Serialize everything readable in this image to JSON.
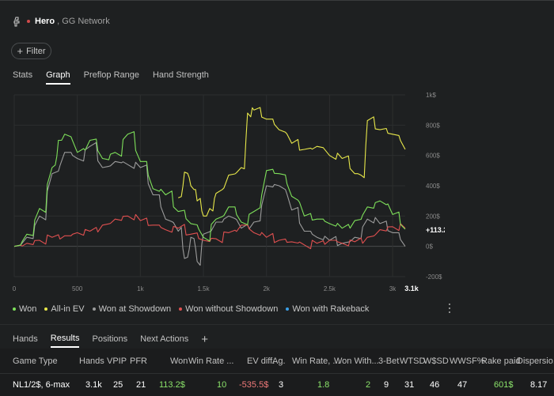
{
  "header": {
    "player": "Hero",
    "network": "GG Network"
  },
  "filter": {
    "label": "Filter"
  },
  "tabs": [
    "Stats",
    "Graph",
    "Preflop Range",
    "Hand Strength"
  ],
  "active_tab": "Graph",
  "colors": {
    "won": "#7ee05a",
    "all_in_ev": "#e8e84a",
    "showdown": "#9c9c9c",
    "non_showdown": "#e05050",
    "rakeback": "#3aa0e8"
  },
  "chart_data": {
    "type": "line",
    "title": "",
    "xlabel": "",
    "ylabel": "",
    "xlim": [
      0,
      3100
    ],
    "ylim": [
      -200,
      1000
    ],
    "x_ticks": [
      "0",
      "500",
      "1k",
      "1.5k",
      "2k",
      "2.5k",
      "3k"
    ],
    "x_tick_values": [
      0,
      500,
      1000,
      1500,
      2000,
      2500,
      3000
    ],
    "y_ticks": [
      "1k$",
      "800$",
      "600$",
      "400$",
      "200$",
      "0$",
      "-200$"
    ],
    "y_tick_values": [
      1000,
      800,
      600,
      400,
      200,
      0,
      -200
    ],
    "end_x_label": "3.1k",
    "end_value_label": "+113.2$",
    "series": [
      {
        "name": "Won",
        "color": "#7ee05a",
        "x": [
          0,
          100,
          200,
          300,
          350,
          400,
          500,
          600,
          700,
          800,
          900,
          1000,
          1100,
          1200,
          1300,
          1400,
          1500,
          1600,
          1700,
          1800,
          1900,
          2000,
          2100,
          2200,
          2300,
          2400,
          2500,
          2600,
          2700,
          2800,
          2900,
          3000,
          3100
        ],
        "values": [
          0,
          80,
          250,
          520,
          700,
          740,
          620,
          700,
          580,
          620,
          740,
          560,
          380,
          340,
          230,
          150,
          60,
          180,
          260,
          160,
          230,
          500,
          480,
          330,
          200,
          180,
          150,
          120,
          170,
          260,
          300,
          210,
          113
        ]
      },
      {
        "name": "All-in EV",
        "color": "#e8e84a",
        "x": [
          1300,
          1350,
          1400,
          1450,
          1500,
          1550,
          1600,
          1700,
          1800,
          1850,
          1900,
          2000,
          2100,
          2200,
          2300,
          2400,
          2500,
          2600,
          2700,
          2750,
          2800,
          2900,
          3000,
          3100
        ],
        "values": [
          320,
          490,
          400,
          300,
          200,
          250,
          350,
          470,
          520,
          880,
          900,
          840,
          770,
          680,
          640,
          660,
          600,
          580,
          480,
          470,
          830,
          770,
          740,
          640
        ]
      },
      {
        "name": "Won at Showdown",
        "color": "#9c9c9c",
        "x": [
          0,
          100,
          200,
          300,
          400,
          500,
          600,
          700,
          800,
          900,
          1000,
          1100,
          1200,
          1300,
          1350,
          1400,
          1450,
          1500,
          1600,
          1700,
          1800,
          1900,
          2000,
          2100,
          2200,
          2300,
          2400,
          2500,
          2600,
          2700,
          2800,
          2900,
          3000,
          3100
        ],
        "values": [
          0,
          60,
          200,
          480,
          620,
          580,
          660,
          520,
          560,
          540,
          520,
          340,
          180,
          100,
          -80,
          60,
          -100,
          80,
          160,
          200,
          120,
          160,
          400,
          400,
          240,
          100,
          60,
          40,
          20,
          60,
          180,
          150,
          90,
          0
        ]
      },
      {
        "name": "Won without Showdown",
        "color": "#e05050",
        "x": [
          0,
          100,
          200,
          300,
          400,
          500,
          600,
          700,
          800,
          900,
          1000,
          1100,
          1200,
          1300,
          1400,
          1500,
          1600,
          1700,
          1800,
          1900,
          2000,
          2100,
          2200,
          2300,
          2400,
          2500,
          2600,
          2700,
          2800,
          2900,
          3000,
          3100
        ],
        "values": [
          0,
          20,
          40,
          60,
          70,
          90,
          100,
          140,
          180,
          200,
          170,
          140,
          110,
          120,
          80,
          40,
          50,
          90,
          140,
          90,
          60,
          40,
          30,
          10,
          20,
          40,
          20,
          30,
          60,
          110,
          130,
          120
        ]
      }
    ]
  },
  "legend": [
    {
      "label": "Won",
      "color": "#7ee05a"
    },
    {
      "label": "All-in EV",
      "color": "#e8e84a"
    },
    {
      "label": "Won at Showdown",
      "color": "#9c9c9c"
    },
    {
      "label": "Won without Showdown",
      "color": "#e05050"
    },
    {
      "label": "Won with Rakeback",
      "color": "#3aa0e8"
    }
  ],
  "bottom_tabs": [
    "Hands",
    "Results",
    "Positions",
    "Next Actions"
  ],
  "bottom_active": "Results",
  "bottom_add": "+",
  "table": {
    "headers": [
      "Game Type",
      "Hands",
      "VPIP",
      "PFR",
      "Won",
      "Win Rate ...",
      "EV diff.",
      "Ag.",
      "Win Rate, ...",
      "Won With...",
      "3-Bet",
      "WTSD",
      "W$SD",
      "WWSF%",
      "Rake paid",
      "Dispersio..."
    ],
    "row": [
      "NL1/2$, 6-max",
      "3.1k",
      "25",
      "21",
      "113.2$",
      "10",
      "-535.5$",
      "3",
      "1.8",
      "2",
      "9",
      "31",
      "46",
      "47",
      "601$",
      "8.17"
    ]
  }
}
